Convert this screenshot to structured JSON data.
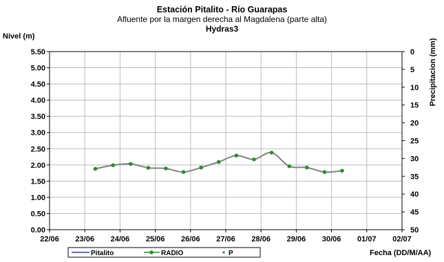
{
  "chart_data": {
    "type": "line",
    "title": "Estación Pitalito  - Río Guarapas",
    "subtitle": "Afluente por la margen derecha al Magdalena (parte alta)",
    "subtitle2": "Hydras3",
    "ylabel": "Nivel (m)",
    "y2label": "Precipitacion (mm)",
    "xlabel": "Fecha (DD/M/AA)",
    "ylim": [
      0,
      5.5
    ],
    "y2lim": [
      0,
      50
    ],
    "y2_inverted": true,
    "yticks": [
      "0.00",
      "0.50",
      "1.00",
      "1.50",
      "2.00",
      "2.50",
      "3.00",
      "3.50",
      "4.00",
      "4.50",
      "5.00",
      "5.50"
    ],
    "y2ticks": [
      "0",
      "5",
      "10",
      "15",
      "20",
      "25",
      "30",
      "35",
      "40",
      "45",
      "50"
    ],
    "xticks": [
      "22/06",
      "23/06",
      "24/06",
      "25/06",
      "26/06",
      "27/06",
      "28/06",
      "29/06",
      "30/06",
      "01/07",
      "02/07"
    ],
    "xlim_days": [
      22,
      32
    ],
    "grid": true,
    "legend_position": "bottom",
    "series": [
      {
        "name": "Pitalito",
        "color": "#3333cc",
        "style": "line",
        "x": [],
        "values": []
      },
      {
        "name": "RADIO",
        "color": "#808080",
        "marker_color": "#2e8b2e",
        "style": "line-marker",
        "x": [
          "23/06 07:00",
          "23/06 19:00",
          "24/06 07:00",
          "24/06 19:00",
          "25/06 07:00",
          "25/06 19:00",
          "26/06 07:00",
          "26/06 19:00",
          "27/06 07:00",
          "27/06 19:00",
          "28/06 07:00",
          "28/06 19:00",
          "29/06 07:00",
          "29/06 19:00",
          "30/06 07:00"
        ],
        "x_days": [
          23.3,
          23.8,
          24.3,
          24.8,
          25.3,
          25.8,
          26.3,
          26.8,
          27.3,
          27.8,
          28.3,
          28.8,
          29.3,
          29.8,
          30.3
        ],
        "values": [
          1.88,
          1.99,
          2.03,
          1.91,
          1.89,
          1.78,
          1.92,
          2.09,
          2.29,
          2.17,
          2.38,
          1.96,
          1.92,
          1.78,
          1.82
        ]
      },
      {
        "name": "P",
        "color": "#2e8b2e",
        "style": "marker",
        "x": [],
        "values": []
      }
    ]
  }
}
